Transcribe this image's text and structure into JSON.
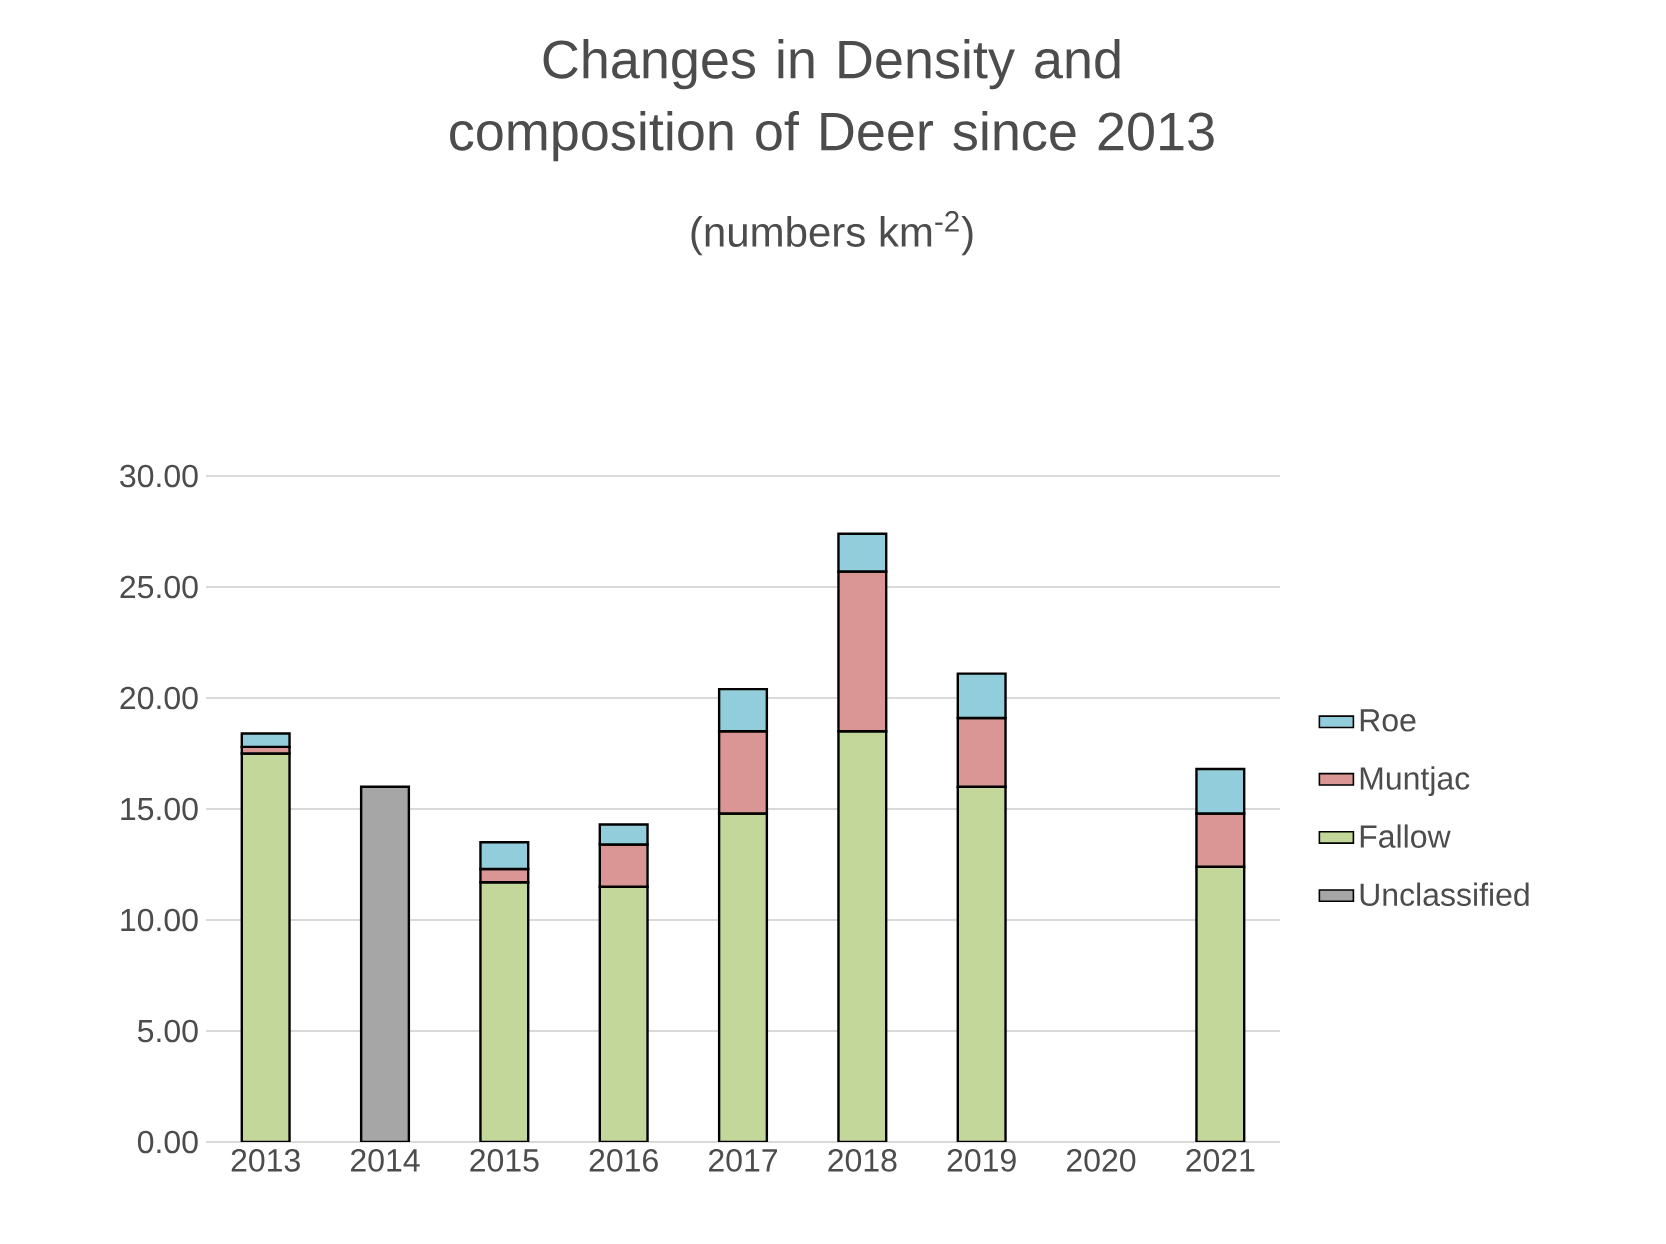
{
  "chart_data": {
    "type": "bar",
    "title": "Changes in Density and composition of Deer since 2013",
    "subtitle": "(numbers km$^{-2}$)",
    "categories": [
      "2013",
      "2014",
      "2015",
      "2016",
      "2017",
      "2018",
      "2019",
      "2020",
      "2021"
    ],
    "stacked": true,
    "series": [
      {
        "name": "Unclassified",
        "color": "#a6a6a6",
        "values": [
          null,
          16.0,
          null,
          null,
          null,
          null,
          null,
          null,
          null
        ]
      },
      {
        "name": "Fallow",
        "color": "#c4d79b",
        "values": [
          17.5,
          null,
          11.7,
          11.5,
          14.8,
          18.5,
          16.0,
          null,
          12.4
        ]
      },
      {
        "name": "Muntjac",
        "color": "#da9694",
        "values": [
          0.3,
          null,
          0.6,
          1.9,
          3.7,
          7.2,
          3.1,
          null,
          2.4
        ]
      },
      {
        "name": "Roe",
        "color": "#92cddc",
        "values": [
          0.6,
          null,
          1.2,
          0.9,
          1.9,
          1.7,
          2.0,
          null,
          2.0
        ]
      }
    ],
    "ylim": [
      0,
      30
    ],
    "yticks": [
      {
        "value": 0,
        "label": "0.00"
      },
      {
        "value": 5,
        "label": "5.00"
      },
      {
        "value": 10,
        "label": "10.00"
      },
      {
        "value": 15,
        "label": "15.00"
      },
      {
        "value": 20,
        "label": "20.00"
      },
      {
        "value": 25,
        "label": "25.00"
      },
      {
        "value": 30,
        "label": "30.00"
      }
    ],
    "grid": "y",
    "legend": "right"
  }
}
